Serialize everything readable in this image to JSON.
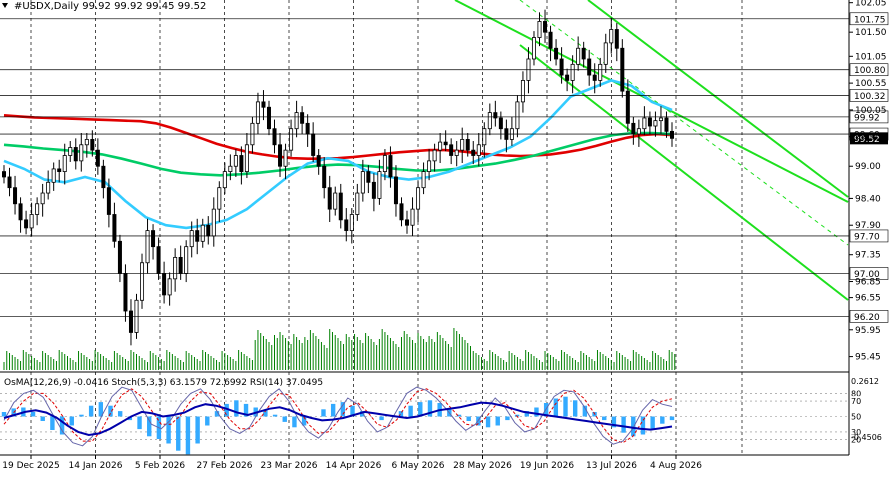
{
  "header": {
    "symbol_line": "#USDX,Daily  99.92 99.92 99.45 99.52",
    "osc_line": "OsMA(12,26,9) -0.0416  Stoch(5,3,3) 63.1579 72.6992  RSI(14) 37.0495"
  },
  "chart_data": [
    {
      "type": "candlestick",
      "symbol": "#USDX",
      "timeframe": "Daily",
      "ohlc_last": {
        "open": 99.92,
        "high": 99.92,
        "low": 99.45,
        "close": 99.52
      },
      "ylim": [
        95.2,
        102.1
      ],
      "grid": true,
      "price_levels": [
        "101.75",
        "100.80",
        "100.32",
        "99.92",
        "99.60",
        "97.70",
        "97.00",
        "96.20"
      ],
      "current_price": "99.52",
      "axis_ticks": [
        "102.05",
        "101.50",
        "101.05",
        "100.55",
        "100.05",
        "99.55",
        "99.00",
        "98.40",
        "97.90",
        "97.35",
        "96.85",
        "96.55",
        "95.95",
        "95.45"
      ],
      "x_tick_labels": [
        "19 Dec 2025",
        "14 Jan 2026",
        "5 Feb 2026",
        "27 Feb 2026",
        "23 Mar 2026",
        "14 Apr 2026",
        "6 May 2026",
        "28 May 2026",
        "19 Jun 2026",
        "13 Jul 2026",
        "4 Aug 2026"
      ],
      "close": [
        98.8,
        98.6,
        98.3,
        98.0,
        97.85,
        98.1,
        98.3,
        98.5,
        98.7,
        98.95,
        98.9,
        99.2,
        99.35,
        99.1,
        99.4,
        99.5,
        99.3,
        99.0,
        98.6,
        98.1,
        97.6,
        97.0,
        96.3,
        95.9,
        96.5,
        97.2,
        97.8,
        97.5,
        97.0,
        96.6,
        96.9,
        97.3,
        97.0,
        97.5,
        97.8,
        97.6,
        97.9,
        97.7,
        98.2,
        98.6,
        98.9,
        99.0,
        99.2,
        98.9,
        99.4,
        99.8,
        100.2,
        100.1,
        99.7,
        99.4,
        99.0,
        99.3,
        99.7,
        100.0,
        99.8,
        99.6,
        99.2,
        99.0,
        98.6,
        98.2,
        98.5,
        98.0,
        97.8,
        98.1,
        98.5,
        98.9,
        98.7,
        98.4,
        98.9,
        99.2,
        98.8,
        98.3,
        98.0,
        97.9,
        98.2,
        98.6,
        98.9,
        99.1,
        99.3,
        99.45,
        99.4,
        99.2,
        99.3,
        99.5,
        99.3,
        99.2,
        99.4,
        99.7,
        100.0,
        99.9,
        99.7,
        99.5,
        99.7,
        100.2,
        100.6,
        101.0,
        101.4,
        101.7,
        101.5,
        101.2,
        101.0,
        100.7,
        100.6,
        100.9,
        101.2,
        101.0,
        100.7,
        100.6,
        100.9,
        101.3,
        101.55,
        101.2,
        100.4,
        99.8,
        99.6,
        99.7,
        99.9,
        99.75,
        99.85,
        99.9,
        99.65,
        99.52
      ],
      "moving_averages": [
        {
          "color": "#e00000",
          "values": [
            99.95,
            99.93,
            99.91,
            99.9,
            99.89,
            99.88,
            99.87,
            99.86,
            99.85,
            99.84,
            99.8,
            99.72,
            99.62,
            99.52,
            99.42,
            99.34,
            99.27,
            99.22,
            99.18,
            99.15,
            99.14,
            99.14,
            99.15,
            99.17,
            99.2,
            99.23,
            99.26,
            99.28,
            99.3,
            99.3,
            99.28,
            99.25,
            99.22,
            99.2,
            99.19,
            99.2,
            99.22,
            99.26,
            99.31,
            99.38,
            99.46,
            99.53,
            99.58,
            99.6,
            99.58
          ]
        },
        {
          "color": "#00cc66",
          "values": [
            99.4,
            99.37,
            99.33,
            99.3,
            99.27,
            99.22,
            99.14,
            99.05,
            98.95,
            98.88,
            98.85,
            98.83,
            98.85,
            98.88,
            98.92,
            98.97,
            99.01,
            99.03,
            99.02,
            98.99,
            98.95,
            98.92,
            98.92,
            98.95,
            99.0,
            99.05,
            99.12,
            99.2,
            99.3,
            99.4,
            99.5,
            99.58,
            99.62,
            99.62,
            99.6
          ]
        },
        {
          "color": "#33ccff",
          "values": [
            99.1,
            98.95,
            98.75,
            98.7,
            98.8,
            98.7,
            98.35,
            98.05,
            97.9,
            97.85,
            97.9,
            98.0,
            98.2,
            98.5,
            98.8,
            99.05,
            99.15,
            99.1,
            98.9,
            98.8,
            98.75,
            98.8,
            98.9,
            99.05,
            99.2,
            99.35,
            99.55,
            99.9,
            100.3,
            100.45,
            100.6,
            100.5,
            100.2,
            100.05
          ]
        }
      ],
      "channels": [
        {
          "color": "#1ee01e",
          "from": [
            "19 Jun 2026",
            102.3
          ],
          "to": [
            "4 Aug 2026",
            97.9
          ]
        },
        {
          "color": "#1ee01e",
          "from": [
            "28 May 2026",
            102.6
          ],
          "to": [
            "4 Aug 2026",
            98.4
          ]
        }
      ]
    },
    {
      "type": "bar",
      "name": "volume",
      "color": "#008000"
    },
    {
      "type": "line",
      "indicators": [
        "OsMA(12,26,9)",
        "Stoch(5,3,3)",
        "RSI(14)"
      ],
      "osma_range": [
        "0.2612",
        "-0.4506"
      ],
      "levels": [
        "80",
        "70",
        "50",
        "30",
        "20"
      ],
      "osma": [
        0.05,
        0.09,
        0.1,
        0.05,
        -0.05,
        -0.15,
        -0.2,
        -0.1,
        0.02,
        0.12,
        0.16,
        0.12,
        0.06,
        -0.04,
        -0.14,
        -0.22,
        -0.25,
        -0.3,
        -0.38,
        -0.42,
        -0.3,
        -0.1,
        0.06,
        0.14,
        0.18,
        0.14,
        0.1,
        0.07,
        0.02,
        -0.06,
        -0.12,
        -0.1,
        0.0,
        0.08,
        0.14,
        0.16,
        0.12,
        0.06,
        0.0,
        -0.04,
        0.0,
        0.06,
        0.12,
        0.16,
        0.18,
        0.15,
        0.08,
        0.02,
        -0.05,
        -0.1,
        -0.12,
        -0.1,
        -0.04,
        0.02,
        0.06,
        0.1,
        0.15,
        0.2,
        0.22,
        0.18,
        0.12,
        0.05,
        -0.04,
        -0.12,
        -0.18,
        -0.22,
        -0.2,
        -0.14,
        -0.08,
        -0.04
      ],
      "stoch_main": [
        45,
        68,
        80,
        84,
        75,
        52,
        30,
        16,
        12,
        24,
        52,
        76,
        88,
        84,
        62,
        40,
        34,
        46,
        66,
        80,
        86,
        72,
        50,
        34,
        28,
        36,
        58,
        76,
        86,
        70,
        46,
        30,
        22,
        34,
        56,
        74,
        66,
        44,
        30,
        36,
        58,
        80,
        88,
        84,
        74,
        60,
        44,
        32,
        40,
        58,
        74,
        62,
        42,
        30,
        34,
        56,
        76,
        84,
        82,
        64,
        42,
        24,
        14,
        18,
        34,
        58,
        72,
        66,
        63
      ],
      "stoch_signal": [
        40,
        55,
        70,
        80,
        80,
        68,
        50,
        30,
        18,
        18,
        34,
        58,
        78,
        86,
        76,
        58,
        40,
        40,
        52,
        70,
        82,
        80,
        64,
        46,
        34,
        34,
        46,
        64,
        80,
        78,
        60,
        40,
        28,
        30,
        44,
        62,
        68,
        56,
        40,
        36,
        46,
        66,
        82,
        86,
        80,
        68,
        54,
        40,
        38,
        48,
        64,
        68,
        54,
        38,
        34,
        44,
        64,
        80,
        84,
        74,
        56,
        36,
        20,
        16,
        24,
        44,
        62,
        70,
        73
      ],
      "rsi": [
        48,
        52,
        56,
        58,
        55,
        48,
        38,
        30,
        26,
        28,
        34,
        42,
        50,
        56,
        54,
        50,
        52,
        55,
        62,
        66,
        64,
        60,
        55,
        52,
        56,
        60,
        62,
        58,
        52,
        48,
        45,
        46,
        48,
        52,
        56,
        54,
        52,
        50,
        48,
        50,
        54,
        58,
        60,
        62,
        65,
        68,
        67,
        64,
        60,
        56,
        54,
        52,
        50,
        48,
        46,
        44,
        42,
        40,
        38,
        36,
        34,
        33,
        35,
        37
      ]
    }
  ]
}
